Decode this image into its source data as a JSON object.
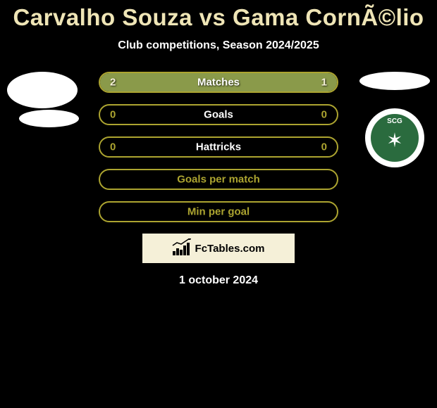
{
  "title": "Carvalho Souza vs Gama CornÃ©lio",
  "subtitle": "Club competitions, Season 2024/2025",
  "date": "1 october 2024",
  "watermark": "FcTables.com",
  "badge_text": "SCG",
  "colors": {
    "background": "#000000",
    "title_color": "#efe5b6",
    "text_color": "#ffffff",
    "accent_olive": "#aca430",
    "accent_fill": "#8a9a4a",
    "value_color": "#f5f0d8",
    "watermark_bg": "#f5f0d8",
    "badge_green": "#2a6b3e"
  },
  "stats": [
    {
      "label": "Matches",
      "left_value": "2",
      "right_value": "1",
      "left_pct": 66.7,
      "right_pct": 33.3,
      "border_color": "#aca430",
      "fill_color": "#8a9a4a",
      "label_color": "#ffffff",
      "value_color": "#f5f0d8"
    },
    {
      "label": "Goals",
      "left_value": "0",
      "right_value": "0",
      "left_pct": 0,
      "right_pct": 0,
      "border_color": "#aca430",
      "fill_color": "#8a9a4a",
      "label_color": "#ffffff",
      "value_color": "#aca430"
    },
    {
      "label": "Hattricks",
      "left_value": "0",
      "right_value": "0",
      "left_pct": 0,
      "right_pct": 0,
      "border_color": "#aca430",
      "fill_color": "#8a9a4a",
      "label_color": "#ffffff",
      "value_color": "#aca430"
    },
    {
      "label": "Goals per match",
      "left_value": "",
      "right_value": "",
      "left_pct": 0,
      "right_pct": 0,
      "border_color": "#aca430",
      "fill_color": "#8a9a4a",
      "label_color": "#aca430",
      "value_color": "#aca430"
    },
    {
      "label": "Min per goal",
      "left_value": "",
      "right_value": "",
      "left_pct": 0,
      "right_pct": 0,
      "border_color": "#aca430",
      "fill_color": "#8a9a4a",
      "label_color": "#aca430",
      "value_color": "#aca430"
    }
  ]
}
